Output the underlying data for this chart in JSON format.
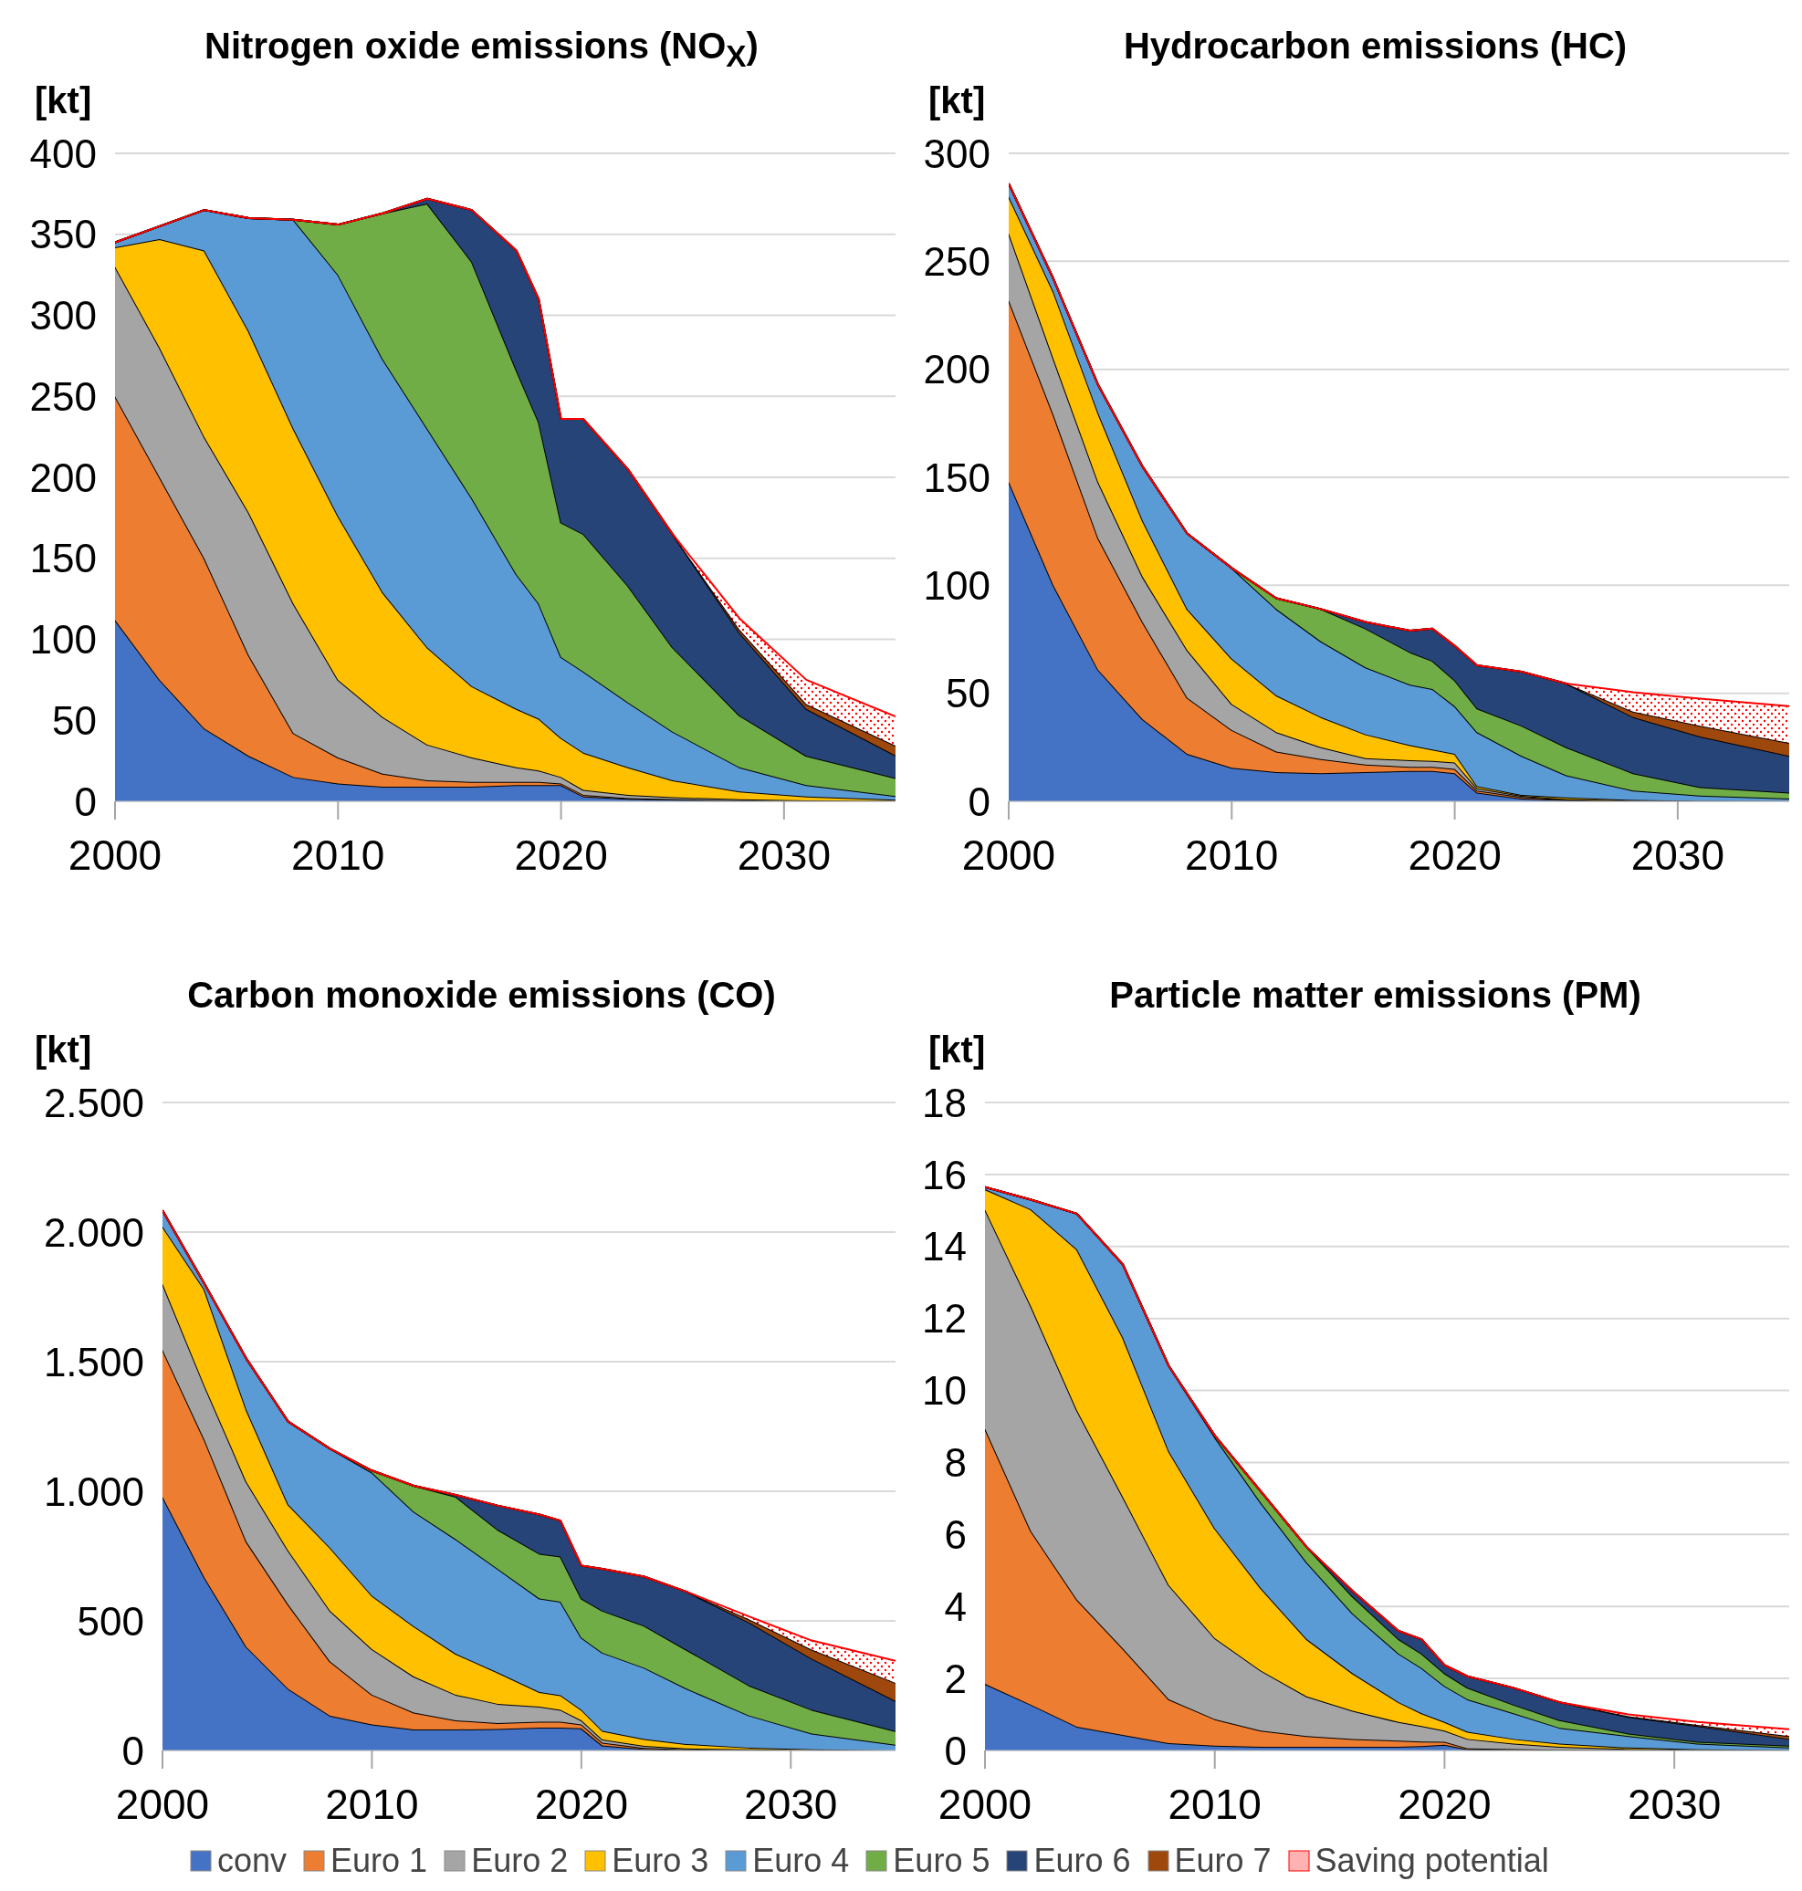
{
  "chart_data": [
    {
      "type": "area",
      "stacked": true,
      "title": "Nitrogen oxide emissions (NO$_{X}$)",
      "ylabel": "[kt]",
      "legend": "bottom",
      "x": [
        2000,
        2002,
        2004,
        2006,
        2008,
        2010,
        2012,
        2014,
        2016,
        2018,
        2019,
        2020,
        2021,
        2023,
        2025,
        2028,
        2031,
        2035
      ],
      "xlim": [
        2000,
        2035
      ],
      "xticks": [
        2000,
        2010,
        2020,
        2030
      ],
      "ylim": [
        0,
        400
      ],
      "yticks": [
        0,
        50,
        100,
        150,
        200,
        250,
        300,
        350,
        400
      ],
      "grid": "y",
      "series": [
        {
          "name": "conv",
          "color": "#4472c4",
          "values": [
            112,
            75,
            45,
            28,
            15,
            11,
            9,
            9,
            9,
            10,
            10,
            10,
            3,
            1.5,
            1,
            0.5,
            0.3,
            0.2
          ]
        },
        {
          "name": "Euro 1",
          "color": "#ed7d31",
          "values": [
            138,
            125,
            105,
            62,
            27,
            16,
            8,
            4,
            3,
            2,
            2,
            1,
            1,
            0.5,
            0.2,
            0.1,
            0,
            0
          ]
        },
        {
          "name": "Euro 2",
          "color": "#a5a5a5",
          "values": [
            80,
            80,
            75,
            88,
            80,
            48,
            35,
            22,
            15,
            9,
            7,
            4,
            3,
            2,
            1.3,
            0.6,
            0.3,
            0.1
          ]
        },
        {
          "name": "Euro 3",
          "color": "#ffc000",
          "values": [
            12,
            67,
            115,
            112,
            108,
            101,
            77,
            60,
            44,
            36,
            32,
            24,
            23,
            17,
            10.5,
            4.8,
            2.4,
            0.7
          ]
        },
        {
          "name": "Euro 4",
          "color": "#5b9bd5",
          "values": [
            3,
            8,
            25,
            70,
            129,
            149,
            144,
            135,
            116,
            83,
            71,
            50,
            50,
            40,
            30,
            15,
            7,
            2.3
          ]
        },
        {
          "name": "Euro 5",
          "color": "#70ad47",
          "values": [
            0,
            0,
            0,
            0,
            0,
            31,
            90,
            139,
            146,
            126,
            112,
            83,
            85,
            72,
            52,
            32,
            18,
            11
          ]
        },
        {
          "name": "Euro 6",
          "color": "#264478",
          "values": [
            0,
            0,
            0,
            0,
            0,
            0,
            0,
            3,
            32,
            74,
            76,
            64,
            71,
            72,
            70,
            51,
            29,
            14
          ]
        },
        {
          "name": "Euro 7",
          "color": "#9e480e",
          "values": [
            0,
            0,
            0,
            0,
            0,
            0,
            0,
            0,
            0,
            0,
            0,
            0,
            0,
            0,
            0,
            2,
            3,
            6
          ]
        },
        {
          "name": "Saving potential",
          "color": "#ff0000",
          "values": [
            0,
            0,
            0,
            0,
            0,
            0,
            0,
            0,
            0,
            0,
            0,
            0,
            0,
            0,
            0,
            7,
            15,
            18
          ]
        }
      ]
    },
    {
      "type": "area",
      "stacked": true,
      "title": "Hydrocarbon emissions (HC)",
      "ylabel": "[kt]",
      "x": [
        2000,
        2002,
        2004,
        2006,
        2008,
        2010,
        2012,
        2014,
        2016,
        2018,
        2019,
        2020,
        2021,
        2023,
        2025,
        2028,
        2031,
        2035
      ],
      "xlim": [
        2000,
        2035
      ],
      "xticks": [
        2000,
        2010,
        2020,
        2030
      ],
      "ylim": [
        0,
        300
      ],
      "yticks": [
        0,
        50,
        100,
        150,
        200,
        250,
        300
      ],
      "grid": "y",
      "series": [
        {
          "color": "#4472c4",
          "values": [
            148,
            100,
            61,
            38,
            22,
            15.5,
            13.5,
            13,
            13.5,
            14,
            14,
            13,
            4,
            1.3,
            0.5,
            0.2,
            0.1,
            0
          ]
        },
        {
          "color": "#ed7d31",
          "values": [
            84,
            79,
            61,
            45,
            26,
            17.5,
            9.5,
            6.5,
            3.5,
            2,
            2,
            2,
            1,
            0.7,
            0.3,
            0.1,
            0,
            0
          ]
        },
        {
          "color": "#a5a5a5",
          "values": [
            31,
            26,
            26,
            21,
            22,
            12,
            9,
            5.5,
            3,
            3,
            2.7,
            3,
            1,
            0.5,
            0.2,
            0.1,
            0.1,
            0.1
          ]
        },
        {
          "color": "#ffc000",
          "values": [
            17,
            31,
            32,
            26,
            19,
            21,
            17,
            14,
            11,
            7,
            5.3,
            4,
            1,
            0.5,
            0.8,
            0.2,
            0,
            0
          ]
        },
        {
          "color": "#5b9bd5",
          "values": [
            6,
            6,
            13,
            25,
            35,
            42,
            40,
            35,
            31,
            28,
            28,
            22,
            25,
            18,
            10.2,
            4.4,
            2.4,
            1.2
          ]
        },
        {
          "color": "#70ad47",
          "values": [
            0,
            0,
            0,
            0,
            0,
            0,
            5,
            15,
            18,
            15,
            13,
            12,
            11,
            14,
            13,
            8,
            3.9,
            2.7
          ]
        },
        {
          "color": "#264478",
          "values": [
            0,
            0,
            0,
            0,
            0,
            0,
            0,
            0,
            3,
            10,
            15,
            16,
            20,
            25,
            29.5,
            26,
            23.5,
            17
          ]
        },
        {
          "color": "#9e480e",
          "values": [
            0,
            0,
            0,
            0,
            0,
            0,
            0,
            0,
            0,
            0,
            0,
            0,
            0,
            0,
            0,
            2.5,
            5,
            6
          ]
        },
        {
          "color": "#ff0000",
          "values": [
            0,
            0,
            0,
            0,
            0,
            0,
            0,
            0,
            0,
            0,
            0,
            0,
            0,
            0,
            0,
            9,
            12.5,
            17
          ]
        }
      ]
    },
    {
      "type": "area",
      "stacked": true,
      "title": "Carbon monoxide emissions (CO)",
      "ylabel": "[kt]",
      "x": [
        2000,
        2002,
        2004,
        2006,
        2008,
        2010,
        2012,
        2014,
        2016,
        2018,
        2019,
        2020,
        2021,
        2023,
        2025,
        2028,
        2031,
        2035
      ],
      "xlim": [
        2000,
        2035
      ],
      "xticks": [
        2000,
        2010,
        2020,
        2030
      ],
      "ylim": [
        0,
        2500
      ],
      "yticks": [
        0,
        500,
        {
          "value": 1000,
          "label": "1.000"
        },
        {
          "value": 1500,
          "label": "1.500"
        },
        {
          "value": 2000,
          "label": "2.000"
        },
        {
          "value": 2500,
          "label": "2.500"
        }
      ],
      "grid": "y",
      "series": [
        {
          "color": "#4472c4",
          "values": [
            979,
            667,
            400,
            238,
            134,
            100,
            81,
            81,
            83,
            88,
            88,
            85,
            19,
            5,
            2,
            1,
            0,
            0
          ]
        },
        {
          "color": "#ed7d31",
          "values": [
            567,
            532,
            406,
            325,
            209,
            115,
            65,
            35,
            23,
            23,
            23,
            15,
            11,
            5,
            2,
            1,
            0,
            0
          ]
        },
        {
          "color": "#a5a5a5",
          "values": [
            255,
            209,
            231,
            208,
            196,
            176,
            139,
            99,
            74,
            58,
            46,
            16,
            12,
            8,
            4,
            2,
            1,
            0
          ]
        },
        {
          "color": "#ffc000",
          "values": [
            220,
            370,
            278,
            178,
            243,
            206,
            194,
            158,
            121,
            56,
            56,
            41,
            34,
            26,
            17,
            7,
            3,
            0
          ]
        },
        {
          "color": "#5b9bd5",
          "values": [
            63,
            23,
            197,
            320,
            382,
            475,
            442,
            442,
            400,
            361,
            361,
            278,
            301,
            275,
            214,
            124,
            61,
            22
          ]
        },
        {
          "color": "#70ad47",
          "values": [
            0,
            0,
            0,
            0,
            0,
            8,
            100,
            164,
            151,
            173,
            174,
            151,
            162,
            162,
            150,
            116,
            92,
            53
          ]
        },
        {
          "color": "#264478",
          "values": [
            0,
            0,
            0,
            0,
            0,
            0,
            0,
            7,
            93,
            151,
            139,
            127,
            162,
            190,
            224,
            243,
            197,
            116
          ]
        },
        {
          "color": "#9e480e",
          "values": [
            0,
            0,
            0,
            0,
            0,
            0,
            0,
            0,
            0,
            0,
            0,
            0,
            0,
            0,
            0,
            12,
            35,
            70
          ]
        },
        {
          "color": "#ff0000",
          "values": [
            0,
            0,
            0,
            0,
            0,
            0,
            0,
            0,
            0,
            0,
            0,
            0,
            0,
            0,
            0,
            11,
            35,
            85
          ]
        }
      ]
    },
    {
      "type": "area",
      "stacked": true,
      "title": "Particle matter emissions (PM)",
      "ylabel": "[kt]",
      "x": [
        2000,
        2002,
        2004,
        2006,
        2008,
        2010,
        2012,
        2014,
        2016,
        2018,
        2019,
        2020,
        2021,
        2023,
        2025,
        2028,
        2031,
        2035
      ],
      "xlim": [
        2000,
        2035
      ],
      "xticks": [
        2000,
        2010,
        2020,
        2030
      ],
      "ylim": [
        0,
        18
      ],
      "yticks": [
        0,
        2,
        4,
        6,
        8,
        10,
        12,
        14,
        16,
        18
      ],
      "grid": "y",
      "series": [
        {
          "color": "#4472c4",
          "values": [
            1.85,
            1.27,
            0.66,
            0.43,
            0.2,
            0.13,
            0.1,
            0.1,
            0.1,
            0.1,
            0.12,
            0.16,
            0.03,
            0.02,
            0.01,
            0,
            0,
            0
          ]
        },
        {
          "color": "#ed7d31",
          "values": [
            7.09,
            4.82,
            3.53,
            2.4,
            1.22,
            0.74,
            0.45,
            0.3,
            0.22,
            0.17,
            0.13,
            0.08,
            0.03,
            0.02,
            0.01,
            0.01,
            0,
            0
          ]
        },
        {
          "color": "#a5a5a5",
          "values": [
            6.09,
            6.25,
            5.26,
            4.21,
            3.17,
            2.25,
            1.67,
            1.1,
            0.78,
            0.52,
            0.43,
            0.31,
            0.26,
            0.15,
            0.08,
            0.03,
            0.02,
            0.01
          ]
        },
        {
          "color": "#ffc000",
          "values": [
            0.56,
            2.69,
            4.47,
            4.43,
            3.72,
            3.05,
            2.29,
            1.59,
            1.04,
            0.55,
            0.35,
            0.24,
            0.2,
            0.13,
            0.09,
            0.04,
            0.01,
            0
          ]
        },
        {
          "color": "#5b9bd5",
          "values": [
            0.06,
            0.27,
            0.99,
            2.03,
            2.37,
            2.53,
            2.37,
            2.13,
            1.66,
            1.35,
            1.26,
            1.0,
            0.9,
            0.71,
            0.44,
            0.32,
            0.16,
            0.07
          ]
        },
        {
          "color": "#70ad47",
          "values": [
            0,
            0,
            0,
            0,
            0,
            0.05,
            0.32,
            0.43,
            0.47,
            0.4,
            0.4,
            0.35,
            0.32,
            0.24,
            0.21,
            0.07,
            0.05,
            0.05
          ]
        },
        {
          "color": "#264478",
          "values": [
            0,
            0,
            0,
            0,
            0,
            0,
            0,
            0,
            0.16,
            0.23,
            0.4,
            0.23,
            0.32,
            0.47,
            0.5,
            0.46,
            0.44,
            0.19
          ]
        },
        {
          "color": "#9e480e",
          "values": [
            0,
            0,
            0,
            0,
            0,
            0,
            0,
            0,
            0,
            0,
            0,
            0,
            0,
            0,
            0,
            0.02,
            0.03,
            0.08
          ]
        },
        {
          "color": "#ff0000",
          "values": [
            0,
            0,
            0,
            0,
            0,
            0,
            0,
            0,
            0,
            0,
            0,
            0,
            0,
            0,
            0,
            0.05,
            0.08,
            0.19
          ]
        }
      ]
    }
  ]
}
